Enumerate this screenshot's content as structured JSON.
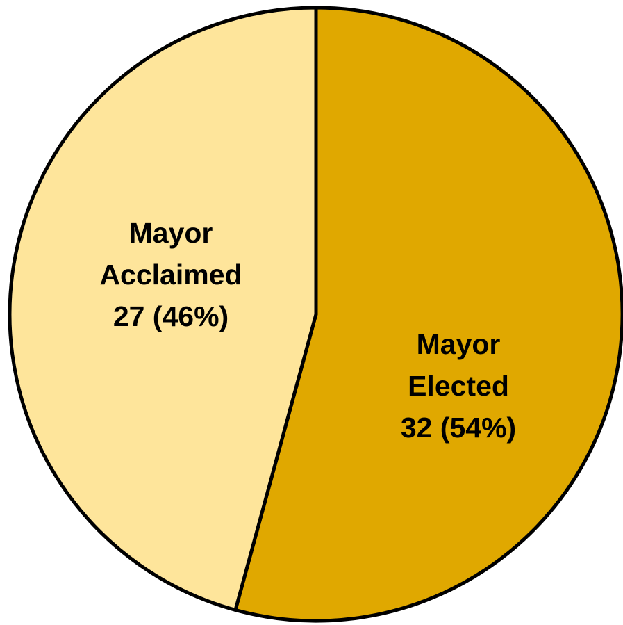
{
  "chart_data": {
    "type": "pie",
    "categories": [
      "Mayor Elected",
      "Mayor Acclaimed"
    ],
    "values": [
      32,
      27
    ],
    "value_labels": [
      "32 (54%)",
      "27 (46%)"
    ],
    "colors": [
      "#e0a800",
      "#fee59b"
    ]
  }
}
